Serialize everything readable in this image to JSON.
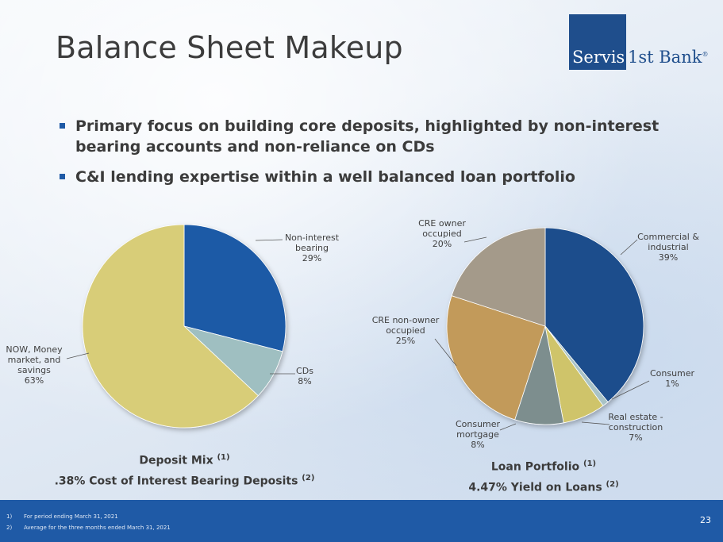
{
  "title": "Balance Sheet Makeup",
  "logo": {
    "part1": "Servis",
    "part2": "1st Bank",
    "mark": "®"
  },
  "bullets": [
    "Primary focus on building core deposits, highlighted by non-interest bearing accounts and non-reliance on CDs",
    "C&I lending expertise within a well balanced loan portfolio"
  ],
  "chart_data": [
    {
      "type": "pie",
      "title": "Deposit Mix",
      "title_ref": "(1)",
      "subtitle": ".38% Cost of Interest Bearing Deposits",
      "subtitle_ref": "(2)",
      "slices": [
        {
          "label": "Non-interest bearing",
          "lines": [
            "Non-interest",
            "bearing"
          ],
          "pct_label": "29%",
          "value": 29,
          "color": "#1f5aa6"
        },
        {
          "label": "CDs",
          "lines": [
            "CDs"
          ],
          "pct_label": "8%",
          "value": 8,
          "color": "#9fbfc1"
        },
        {
          "label": "NOW, Money market, and savings",
          "lines": [
            "NOW, Money",
            "market, and",
            "savings"
          ],
          "pct_label": "63%",
          "value": 63,
          "color": "#d8cd78"
        }
      ]
    },
    {
      "type": "pie",
      "title": "Loan Portfolio",
      "title_ref": "(1)",
      "subtitle": "4.47% Yield on Loans",
      "subtitle_ref": "(2)",
      "slices": [
        {
          "label": "Commercial & industrial",
          "lines": [
            "Commercial &",
            "industrial"
          ],
          "pct_label": "39%",
          "value": 39,
          "color": "#1f4e8c"
        },
        {
          "label": "Consumer",
          "lines": [
            "Consumer"
          ],
          "pct_label": "1%",
          "value": 1,
          "color": "#a9c3c6"
        },
        {
          "label": "Real estate - construction",
          "lines": [
            "Real estate -",
            "construction"
          ],
          "pct_label": "7%",
          "value": 7,
          "color": "#cfc46a"
        },
        {
          "label": "Consumer mortgage",
          "lines": [
            "Consumer",
            "mortgage"
          ],
          "pct_label": "8%",
          "value": 8,
          "color": "#7d8e8e"
        },
        {
          "label": "CRE non-owner occupied",
          "lines": [
            "CRE non-owner",
            "occupied"
          ],
          "pct_label": "25%",
          "value": 25,
          "color": "#c29a5a"
        },
        {
          "label": "CRE owner occupied",
          "lines": [
            "CRE owner",
            "occupied"
          ],
          "pct_label": "20%",
          "value": 20,
          "color": "#a49a8a"
        }
      ]
    }
  ],
  "footnotes": [
    {
      "num": "1)",
      "text": "For period ending March 31, 2021"
    },
    {
      "num": "2)",
      "text": "Average for the three months ended March 31, 2021"
    }
  ],
  "page_number": "23"
}
